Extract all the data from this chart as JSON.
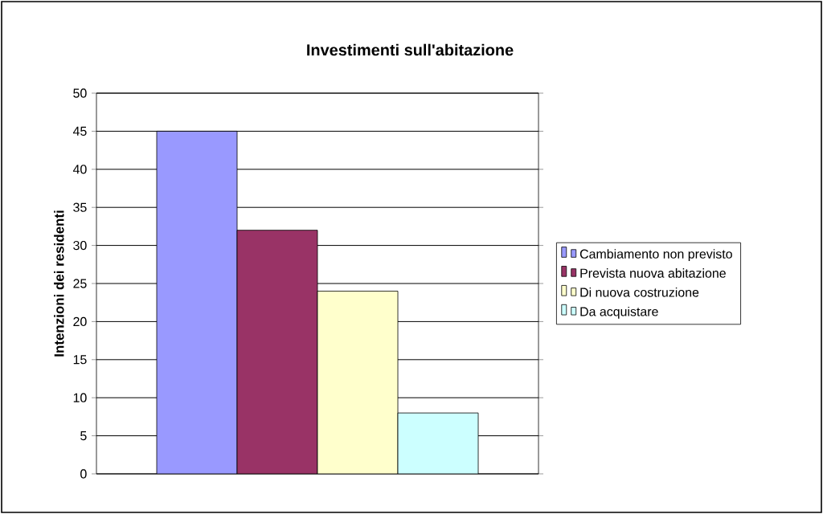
{
  "chart_data": {
    "type": "bar",
    "title": "Investimenti sull'abitazione",
    "ylabel": "Intenzioni dei residenti",
    "categories": [
      null
    ],
    "series": [
      {
        "name": "Cambiamento non previsto",
        "color": "#9999ff",
        "values": [
          45
        ]
      },
      {
        "name": "Prevista nuova abitazione",
        "color": "#993366",
        "values": [
          32
        ]
      },
      {
        "name": "Di nuova costruzione",
        "color": "#ffffcc",
        "values": [
          24
        ]
      },
      {
        "name": "Da acquistare",
        "color": "#ccffff",
        "values": [
          8
        ]
      }
    ],
    "ylim": [
      0,
      50
    ],
    "yticks": [
      0,
      5,
      10,
      15,
      20,
      25,
      30,
      35,
      40,
      45,
      50
    ],
    "grid": "y",
    "legend": "right"
  }
}
